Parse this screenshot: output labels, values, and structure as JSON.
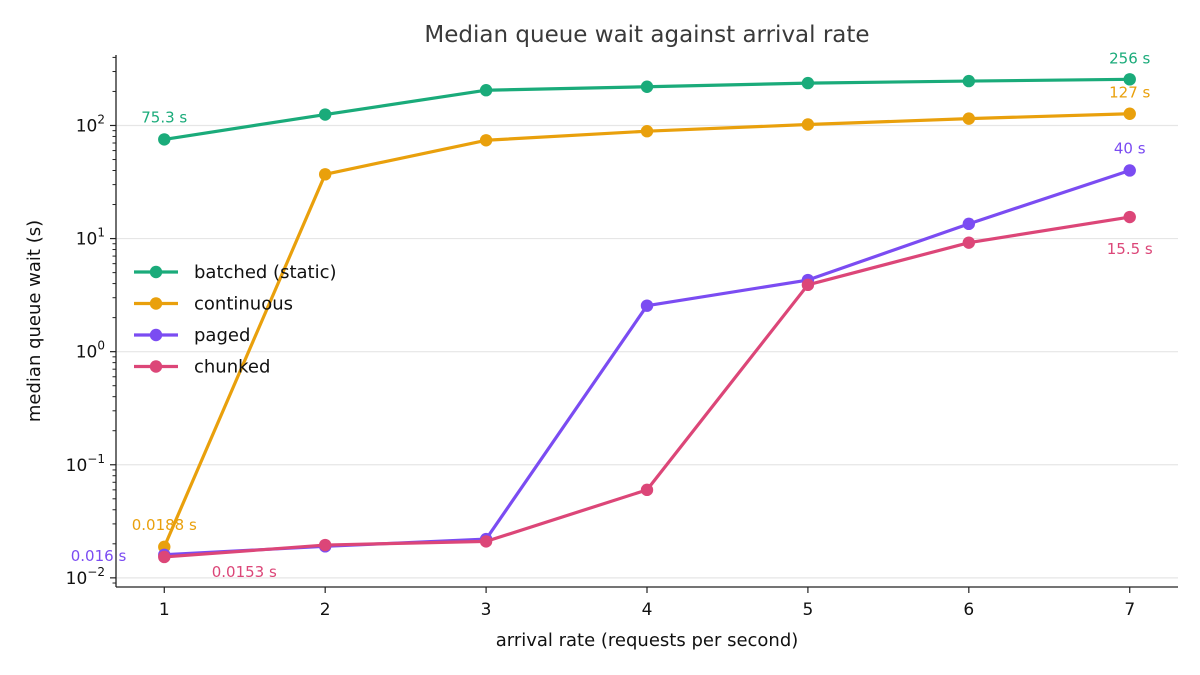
{
  "chart_data": {
    "type": "line",
    "title": "Median queue wait against arrival rate",
    "xlabel": "arrival rate (requests per second)",
    "ylabel": "median queue wait (s)",
    "y_scale": "log",
    "xlim": [
      0.7,
      7.3
    ],
    "ylim": [
      0.0083,
      420
    ],
    "grid": "horizontal major gridlines",
    "legend_placement": "center-left",
    "x_ticks": [
      "1",
      "2",
      "3",
      "4",
      "5",
      "6",
      "7"
    ],
    "y_ticks": [
      {
        "value": 0.01,
        "base": "10",
        "exp": "−2"
      },
      {
        "value": 0.1,
        "base": "10",
        "exp": "−1"
      },
      {
        "value": 1,
        "base": "10",
        "exp": "0"
      },
      {
        "value": 10,
        "base": "10",
        "exp": "1"
      },
      {
        "value": 100,
        "base": "10",
        "exp": "2"
      }
    ],
    "x": [
      1,
      2,
      3,
      4,
      5,
      6,
      7
    ],
    "series": [
      {
        "name": "batched (static)",
        "color": "#1aab7a",
        "values": [
          75.3,
          125,
          205,
          220,
          237,
          247,
          256
        ]
      },
      {
        "name": "continuous",
        "color": "#e9a00c",
        "values": [
          0.0188,
          37,
          74,
          89,
          102,
          115,
          127
        ]
      },
      {
        "name": "paged",
        "color": "#7b4cf2",
        "values": [
          0.016,
          0.019,
          0.022,
          2.55,
          4.3,
          13.5,
          40
        ]
      },
      {
        "name": "chunked",
        "color": "#dc4678",
        "values": [
          0.0153,
          0.0195,
          0.021,
          0.06,
          3.9,
          9.2,
          15.5
        ]
      }
    ],
    "annotations": [
      {
        "text": "75.3 s",
        "series": 0,
        "x": 1,
        "y": 75.3
      },
      {
        "text": "256 s",
        "series": 0,
        "x": 7,
        "y": 256
      },
      {
        "text": "0.0188 s",
        "series": 1,
        "x": 1,
        "y": 0.0188
      },
      {
        "text": "127 s",
        "series": 1,
        "x": 7,
        "y": 127
      },
      {
        "text": "0.016 s",
        "series": 2,
        "x": 1,
        "y": 0.016
      },
      {
        "text": "40 s",
        "series": 2,
        "x": 7,
        "y": 40
      },
      {
        "text": "0.0153 s",
        "series": 3,
        "x": 1,
        "y": 0.0153
      },
      {
        "text": "15.5 s",
        "series": 3,
        "x": 7,
        "y": 15.5
      }
    ]
  }
}
